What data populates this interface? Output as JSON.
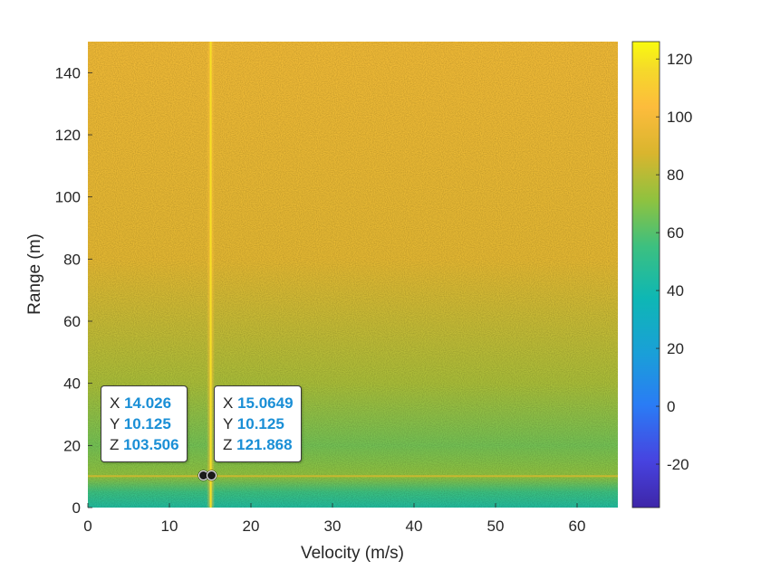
{
  "chart_data": {
    "type": "heatmap",
    "xlabel": "Velocity (m/s)",
    "ylabel": "Range (m)",
    "xlim": [
      0,
      65
    ],
    "ylim": [
      0,
      150
    ],
    "x_ticks": [
      "0",
      "10",
      "20",
      "30",
      "40",
      "50",
      "60"
    ],
    "y_ticks": [
      "0",
      "20",
      "40",
      "60",
      "80",
      "100",
      "120",
      "140"
    ],
    "colorbar": {
      "colormap": "parula",
      "clim": [
        -35,
        126
      ],
      "ticks": [
        "-20",
        "0",
        "20",
        "40",
        "60",
        "80",
        "100",
        "120"
      ]
    },
    "grid": false,
    "background_trend": {
      "range_m": [
        0,
        5,
        10,
        20,
        40,
        80,
        150
      ],
      "level": [
        45,
        55,
        72,
        66,
        77,
        92,
        97
      ]
    },
    "features": [
      {
        "kind": "vertical_ridge",
        "velocity": 15.0649,
        "level": 118
      },
      {
        "kind": "horizontal_ridge",
        "range": 10.125,
        "level": 85
      }
    ],
    "datatips": [
      {
        "x_label": "X",
        "x": "14.026",
        "y_label": "Y",
        "y": "10.125",
        "z_label": "Z",
        "z": "103.506"
      },
      {
        "x_label": "X",
        "x": "15.0649",
        "y_label": "Y",
        "y": "10.125",
        "z_label": "Z",
        "z": "121.868"
      }
    ]
  }
}
